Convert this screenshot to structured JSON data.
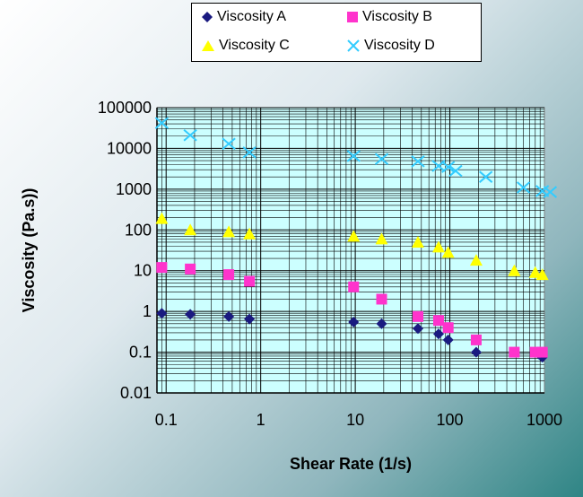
{
  "chart_data": {
    "type": "scatter",
    "xlabel": "Shear Rate (1/s)",
    "ylabel": "Viscosity (Pa.s))",
    "xscale": "log",
    "yscale": "log",
    "xlim": [
      0.08,
      1000
    ],
    "ylim": [
      0.01,
      100000
    ],
    "x_tick_labels": [
      "0.1",
      "1",
      "10",
      "100",
      "1000"
    ],
    "y_tick_labels": [
      "100000",
      "10000",
      "1000",
      "100",
      "10",
      "1",
      "0.1",
      "0.01"
    ],
    "grid": true,
    "legend_position": "top",
    "series": [
      {
        "name": "Viscosity A",
        "marker": "diamond",
        "color": "#1a1a80",
        "x": [
          0.09,
          0.18,
          0.46,
          0.76,
          9.6,
          19,
          46,
          76,
          96,
          190,
          480,
          870,
          950
        ],
        "y": [
          0.9,
          0.85,
          0.75,
          0.65,
          0.55,
          0.5,
          0.38,
          0.28,
          0.2,
          0.1,
          0.1,
          0.09,
          0.075
        ]
      },
      {
        "name": "Viscosity B",
        "marker": "square",
        "color": "#ff33cc",
        "x": [
          0.09,
          0.18,
          0.46,
          0.76,
          9.6,
          19,
          46,
          76,
          96,
          190,
          480,
          800,
          950
        ],
        "y": [
          12,
          11,
          8,
          5.5,
          4,
          2,
          0.75,
          0.6,
          0.4,
          0.2,
          0.1,
          0.1,
          0.1
        ]
      },
      {
        "name": "Viscosity C",
        "marker": "triangle",
        "color": "#ffff00",
        "x": [
          0.09,
          0.18,
          0.46,
          0.76,
          9.6,
          19,
          46,
          76,
          96,
          190,
          480,
          800,
          950
        ],
        "y": [
          190,
          100,
          90,
          80,
          70,
          60,
          50,
          38,
          28,
          18,
          10,
          9,
          8
        ]
      },
      {
        "name": "Viscosity D",
        "marker": "x",
        "color": "#33ccff",
        "x": [
          0.09,
          0.18,
          0.46,
          0.76,
          9.6,
          19,
          46,
          76,
          96,
          115,
          240,
          600,
          950,
          1150
        ],
        "y": [
          42000,
          21000,
          13000,
          8000,
          6500,
          5500,
          4800,
          3700,
          3500,
          2800,
          2000,
          1100,
          900,
          850
        ]
      }
    ]
  }
}
